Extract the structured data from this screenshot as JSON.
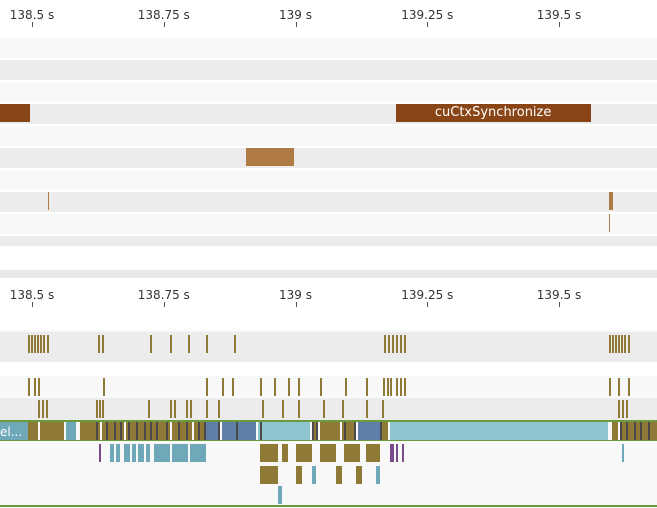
{
  "timeline_top": {
    "ticks": [
      {
        "label": "138.5 s",
        "t": 138.5
      },
      {
        "label": "138.75 s",
        "t": 138.75
      },
      {
        "label": "139 s",
        "t": 139.0
      },
      {
        "label": "139.25 s",
        "t": 139.25
      },
      {
        "label": "139.5 s",
        "t": 139.5
      }
    ]
  },
  "timeline_bottom": {
    "ticks": [
      {
        "label": "138.5 s",
        "t": 138.5
      },
      {
        "label": "138.75 s",
        "t": 138.75
      },
      {
        "label": "139 s",
        "t": 139.0
      },
      {
        "label": "139.25 s",
        "t": 139.25
      },
      {
        "label": "139.5 s",
        "t": 139.5
      }
    ]
  },
  "api_call": {
    "name": "cuCtxSynchronize",
    "start": 139.19,
    "end": 139.56
  },
  "kernel_label": "el...",
  "colors": {
    "api_brown": "#8a4516",
    "memcpy_tan": "#b07a45",
    "kernel_olive": "#8f7a35",
    "kernel_teal": "#6fa8b8",
    "kernel_blue": "#5f7fa8",
    "kernel_cyan": "#8fc5cf",
    "stripe_dark": "#ececec",
    "stripe_light": "#f8f8f8",
    "green_line": "#6a9a3a"
  }
}
